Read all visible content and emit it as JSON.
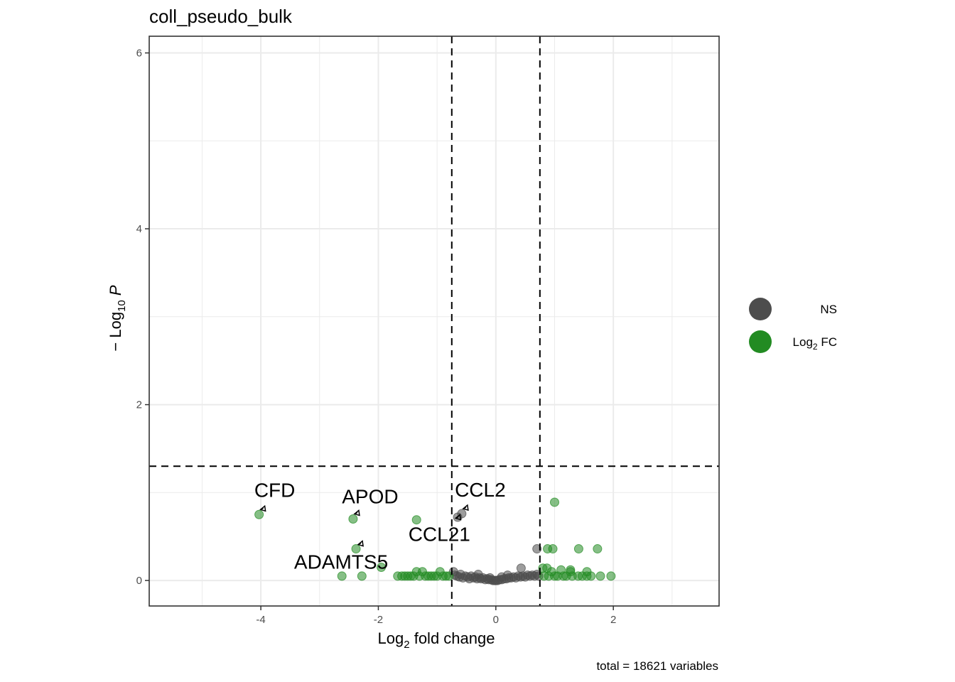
{
  "chart_data": {
    "type": "scatter",
    "title": "coll_pseudo_bulk",
    "xlabel": "Log2 fold change",
    "ylabel": "− Log10 P",
    "caption": "total = 18621 variables",
    "xlim": [
      -5.9,
      3.8
    ],
    "ylim": [
      -0.29,
      6.19
    ],
    "x_ticks": [
      -4,
      -2,
      0,
      2
    ],
    "y_ticks": [
      0,
      2,
      4,
      6
    ],
    "grid": true,
    "cutoffs": {
      "fc": [
        -0.75,
        0.75
      ],
      "p": 1.3
    },
    "legend": {
      "position": "right",
      "entries": [
        {
          "key": "NS",
          "label": "NS",
          "color": "#4d4d4d"
        },
        {
          "key": "FC",
          "label": "Log2 FC",
          "color": "#228b22"
        }
      ]
    },
    "series": [
      {
        "name": "NS",
        "color": "#4d4d4d",
        "points": [
          [
            -0.65,
            0.72
          ],
          [
            -0.58,
            0.76
          ],
          [
            -0.72,
            0.1
          ],
          [
            0.43,
            0.14
          ],
          [
            0.7,
            0.36
          ],
          [
            -0.7,
            0.06
          ],
          [
            -0.66,
            0.05
          ],
          [
            -0.62,
            0.04
          ],
          [
            -0.6,
            0.07
          ],
          [
            -0.56,
            0.03
          ],
          [
            -0.52,
            0.05
          ],
          [
            -0.48,
            0.04
          ],
          [
            -0.45,
            0.02
          ],
          [
            -0.42,
            0.05
          ],
          [
            -0.38,
            0.03
          ],
          [
            -0.35,
            0.04
          ],
          [
            -0.32,
            0.02
          ],
          [
            -0.28,
            0.03
          ],
          [
            -0.25,
            0.02
          ],
          [
            -0.22,
            0.03
          ],
          [
            -0.18,
            0.01
          ],
          [
            -0.15,
            0.02
          ],
          [
            -0.12,
            0.01
          ],
          [
            -0.08,
            0.01
          ],
          [
            -0.05,
            0.0
          ],
          [
            -0.02,
            0.0
          ],
          [
            0.0,
            0.0
          ],
          [
            0.03,
            0.0
          ],
          [
            0.06,
            0.01
          ],
          [
            0.1,
            0.01
          ],
          [
            0.14,
            0.02
          ],
          [
            0.18,
            0.02
          ],
          [
            0.22,
            0.03
          ],
          [
            0.26,
            0.03
          ],
          [
            0.3,
            0.04
          ],
          [
            0.34,
            0.03
          ],
          [
            0.38,
            0.05
          ],
          [
            0.42,
            0.04
          ],
          [
            0.46,
            0.05
          ],
          [
            0.5,
            0.04
          ],
          [
            0.54,
            0.06
          ],
          [
            0.58,
            0.05
          ],
          [
            0.62,
            0.06
          ],
          [
            0.66,
            0.05
          ],
          [
            0.7,
            0.07
          ],
          [
            0.73,
            0.05
          ],
          [
            0.2,
            0.06
          ],
          [
            -0.3,
            0.07
          ],
          [
            0.1,
            0.04
          ],
          [
            -0.1,
            0.03
          ]
        ]
      },
      {
        "name": "Log2 FC",
        "color": "#228b22",
        "points": [
          [
            -4.03,
            0.75
          ],
          [
            -2.43,
            0.7
          ],
          [
            -1.35,
            0.69
          ],
          [
            -2.38,
            0.36
          ],
          [
            -1.95,
            0.15
          ],
          [
            -2.62,
            0.05
          ],
          [
            -2.28,
            0.05
          ],
          [
            -1.67,
            0.05
          ],
          [
            -1.6,
            0.05
          ],
          [
            -1.55,
            0.05
          ],
          [
            -1.5,
            0.05
          ],
          [
            -1.45,
            0.05
          ],
          [
            -1.4,
            0.05
          ],
          [
            -1.35,
            0.1
          ],
          [
            -1.3,
            0.05
          ],
          [
            -1.25,
            0.1
          ],
          [
            -1.2,
            0.05
          ],
          [
            -1.15,
            0.05
          ],
          [
            -1.1,
            0.05
          ],
          [
            -1.05,
            0.05
          ],
          [
            -0.95,
            0.1
          ],
          [
            -0.9,
            0.05
          ],
          [
            -0.85,
            0.05
          ],
          [
            -0.8,
            0.05
          ],
          [
            -1.0,
            0.05
          ],
          [
            1.0,
            0.89
          ],
          [
            0.88,
            0.36
          ],
          [
            0.97,
            0.36
          ],
          [
            1.41,
            0.36
          ],
          [
            1.73,
            0.36
          ],
          [
            0.8,
            0.14
          ],
          [
            0.87,
            0.14
          ],
          [
            0.95,
            0.1
          ],
          [
            1.11,
            0.12
          ],
          [
            1.27,
            0.1
          ],
          [
            1.27,
            0.12
          ],
          [
            1.55,
            0.1
          ],
          [
            0.82,
            0.05
          ],
          [
            0.9,
            0.05
          ],
          [
            1.0,
            0.05
          ],
          [
            1.05,
            0.05
          ],
          [
            1.15,
            0.05
          ],
          [
            1.2,
            0.05
          ],
          [
            1.3,
            0.05
          ],
          [
            1.4,
            0.05
          ],
          [
            1.47,
            0.05
          ],
          [
            1.55,
            0.05
          ],
          [
            1.62,
            0.05
          ],
          [
            1.78,
            0.05
          ],
          [
            1.96,
            0.05
          ]
        ]
      }
    ],
    "labels": [
      {
        "text": "CFD",
        "x": -4.03,
        "y": 0.75
      },
      {
        "text": "APOD",
        "x": -2.43,
        "y": 0.7
      },
      {
        "text": "CCL2",
        "x": -0.58,
        "y": 0.76
      },
      {
        "text": "CCL21",
        "x": -0.72,
        "y": 0.66
      },
      {
        "text": "ADAMTS5",
        "x": -2.38,
        "y": 0.36
      }
    ]
  }
}
